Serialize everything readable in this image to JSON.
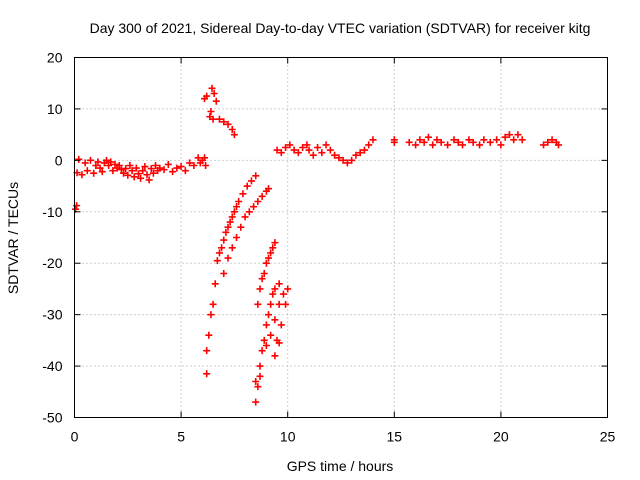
{
  "colors": {
    "series": "#ff0000",
    "grid": "#a0a0a0",
    "axis": "#000000"
  },
  "chart_data": {
    "type": "scatter",
    "title": "Day 300 of 2021, Sidereal Day-to-day VTEC variation (SDTVAR) for receiver kitg",
    "xlabel": "GPS time / hours",
    "ylabel": "SDTVAR / TECUs",
    "xlim": [
      0,
      25
    ],
    "ylim": [
      -50,
      20
    ],
    "xticks": [
      0,
      5,
      10,
      15,
      20,
      25
    ],
    "yticks": [
      -50,
      -40,
      -30,
      -20,
      -10,
      0,
      10,
      20
    ],
    "grid": true,
    "marker": "plus",
    "series": [
      {
        "name": "SDTVAR",
        "points": [
          [
            0.05,
            -9.5
          ],
          [
            0.1,
            -8.8
          ],
          [
            0.12,
            -2.4
          ],
          [
            0.2,
            0.2
          ],
          [
            0.35,
            -2.8
          ],
          [
            0.5,
            -0.5
          ],
          [
            0.6,
            -2.0
          ],
          [
            0.75,
            0.0
          ],
          [
            0.9,
            -2.5
          ],
          [
            1.0,
            -1.0
          ],
          [
            1.1,
            -0.3
          ],
          [
            1.2,
            -1.5
          ],
          [
            1.3,
            -2.2
          ],
          [
            1.4,
            -0.5
          ],
          [
            1.5,
            0.0
          ],
          [
            1.6,
            -1.0
          ],
          [
            1.7,
            -0.3
          ],
          [
            1.8,
            -2.0
          ],
          [
            1.9,
            -0.8
          ],
          [
            2.0,
            -1.5
          ],
          [
            2.1,
            -1.0
          ],
          [
            2.2,
            -1.8
          ],
          [
            2.3,
            -2.5
          ],
          [
            2.4,
            -1.6
          ],
          [
            2.5,
            -2.9
          ],
          [
            2.6,
            -1.0
          ],
          [
            2.7,
            -2.0
          ],
          [
            2.8,
            -3.2
          ],
          [
            2.9,
            -1.5
          ],
          [
            3.0,
            -2.6
          ],
          [
            3.1,
            -3.5
          ],
          [
            3.2,
            -2.0
          ],
          [
            3.3,
            -1.2
          ],
          [
            3.4,
            -2.8
          ],
          [
            3.5,
            -3.8
          ],
          [
            3.6,
            -1.6
          ],
          [
            3.7,
            -2.5
          ],
          [
            3.8,
            -1.0
          ],
          [
            3.9,
            -2.0
          ],
          [
            4.0,
            -1.5
          ],
          [
            4.2,
            -1.8
          ],
          [
            4.4,
            -0.8
          ],
          [
            4.6,
            -2.2
          ],
          [
            4.8,
            -1.5
          ],
          [
            5.0,
            -1.2
          ],
          [
            5.2,
            -2.0
          ],
          [
            5.4,
            -0.5
          ],
          [
            5.6,
            -1.0
          ],
          [
            5.8,
            0.5
          ],
          [
            5.9,
            -0.5
          ],
          [
            6.0,
            0.0
          ],
          [
            6.1,
            0.5
          ],
          [
            6.15,
            -1.0
          ],
          [
            6.1,
            12.0
          ],
          [
            6.2,
            12.5
          ],
          [
            6.35,
            8.5
          ],
          [
            6.4,
            9.5
          ],
          [
            6.5,
            8.0
          ],
          [
            6.45,
            14.0
          ],
          [
            6.55,
            13.0
          ],
          [
            6.65,
            11.5
          ],
          [
            6.8,
            8.0
          ],
          [
            7.0,
            7.5
          ],
          [
            7.2,
            7.0
          ],
          [
            7.4,
            6.0
          ],
          [
            7.5,
            5.0
          ],
          [
            6.2,
            -37.0
          ],
          [
            6.2,
            -41.5
          ],
          [
            6.3,
            -34.0
          ],
          [
            6.4,
            -30.0
          ],
          [
            6.5,
            -28.0
          ],
          [
            6.6,
            -24.0
          ],
          [
            6.7,
            -19.5
          ],
          [
            6.8,
            -18.0
          ],
          [
            6.9,
            -17.0
          ],
          [
            7.0,
            -15.5
          ],
          [
            7.1,
            -14.0
          ],
          [
            7.2,
            -13.0
          ],
          [
            7.3,
            -12.0
          ],
          [
            7.4,
            -11.0
          ],
          [
            7.5,
            -10.0
          ],
          [
            7.6,
            -9.0
          ],
          [
            7.7,
            -8.0
          ],
          [
            7.9,
            -6.5
          ],
          [
            8.1,
            -5.0
          ],
          [
            8.3,
            -4.0
          ],
          [
            8.5,
            -3.0
          ],
          [
            7.0,
            -22.0
          ],
          [
            7.2,
            -19.0
          ],
          [
            7.4,
            -17.0
          ],
          [
            7.6,
            -15.0
          ],
          [
            7.8,
            -13.0
          ],
          [
            8.0,
            -11.0
          ],
          [
            8.2,
            -10.0
          ],
          [
            8.4,
            -9.0
          ],
          [
            8.6,
            -8.0
          ],
          [
            8.8,
            -7.0
          ],
          [
            9.0,
            -6.0
          ],
          [
            9.1,
            -5.5
          ],
          [
            8.5,
            -47.0
          ],
          [
            8.6,
            -44.0
          ],
          [
            8.7,
            -40.0
          ],
          [
            8.8,
            -37.0
          ],
          [
            8.9,
            -35.0
          ],
          [
            9.0,
            -32.0
          ],
          [
            9.1,
            -30.0
          ],
          [
            9.2,
            -28.0
          ],
          [
            9.3,
            -26.0
          ],
          [
            9.4,
            -25.0
          ],
          [
            9.6,
            -24.0
          ],
          [
            8.6,
            -28.0
          ],
          [
            8.7,
            -25.0
          ],
          [
            8.8,
            -23.0
          ],
          [
            8.9,
            -22.0
          ],
          [
            9.0,
            -20.0
          ],
          [
            9.1,
            -19.0
          ],
          [
            9.2,
            -18.0
          ],
          [
            9.3,
            -17.0
          ],
          [
            9.4,
            -16.0
          ],
          [
            8.5,
            -43.0
          ],
          [
            8.7,
            -42.0
          ],
          [
            9.0,
            -36.0
          ],
          [
            9.2,
            -34.0
          ],
          [
            9.4,
            -31.0
          ],
          [
            9.6,
            -28.0
          ],
          [
            9.8,
            -26.0
          ],
          [
            9.5,
            -35.0
          ],
          [
            9.7,
            -32.0
          ],
          [
            9.9,
            -28.0
          ],
          [
            10.0,
            -25.0
          ],
          [
            9.4,
            -38.0
          ],
          [
            9.6,
            -35.5
          ],
          [
            9.5,
            2.0
          ],
          [
            9.7,
            1.5
          ],
          [
            9.9,
            2.5
          ],
          [
            10.1,
            3.0
          ],
          [
            10.3,
            2.0
          ],
          [
            10.5,
            1.5
          ],
          [
            10.7,
            2.5
          ],
          [
            10.9,
            3.0
          ],
          [
            11.0,
            2.0
          ],
          [
            11.2,
            1.0
          ],
          [
            11.4,
            2.5
          ],
          [
            11.6,
            1.5
          ],
          [
            11.8,
            3.0
          ],
          [
            12.0,
            2.0
          ],
          [
            12.2,
            1.0
          ],
          [
            12.4,
            0.5
          ],
          [
            12.6,
            0.0
          ],
          [
            12.8,
            -0.5
          ],
          [
            13.0,
            0.0
          ],
          [
            13.2,
            1.0
          ],
          [
            13.4,
            1.5
          ],
          [
            13.6,
            2.0
          ],
          [
            13.8,
            3.0
          ],
          [
            14.0,
            4.0
          ],
          [
            15.0,
            3.5
          ],
          [
            15.0,
            4.0
          ],
          [
            15.7,
            3.5
          ],
          [
            16.0,
            3.0
          ],
          [
            16.2,
            4.0
          ],
          [
            16.4,
            3.5
          ],
          [
            16.6,
            4.5
          ],
          [
            16.8,
            3.0
          ],
          [
            17.0,
            4.0
          ],
          [
            17.2,
            3.5
          ],
          [
            17.5,
            3.0
          ],
          [
            17.8,
            4.0
          ],
          [
            18.0,
            3.5
          ],
          [
            18.2,
            3.0
          ],
          [
            18.5,
            4.0
          ],
          [
            18.7,
            3.5
          ],
          [
            19.0,
            3.0
          ],
          [
            19.2,
            4.0
          ],
          [
            19.5,
            3.5
          ],
          [
            19.8,
            4.0
          ],
          [
            20.0,
            3.0
          ],
          [
            20.2,
            4.5
          ],
          [
            20.4,
            5.0
          ],
          [
            20.6,
            4.0
          ],
          [
            20.8,
            5.0
          ],
          [
            21.0,
            4.0
          ],
          [
            22.0,
            3.0
          ],
          [
            22.2,
            3.5
          ],
          [
            22.4,
            4.0
          ],
          [
            22.6,
            3.5
          ],
          [
            22.7,
            3.0
          ]
        ]
      }
    ]
  }
}
